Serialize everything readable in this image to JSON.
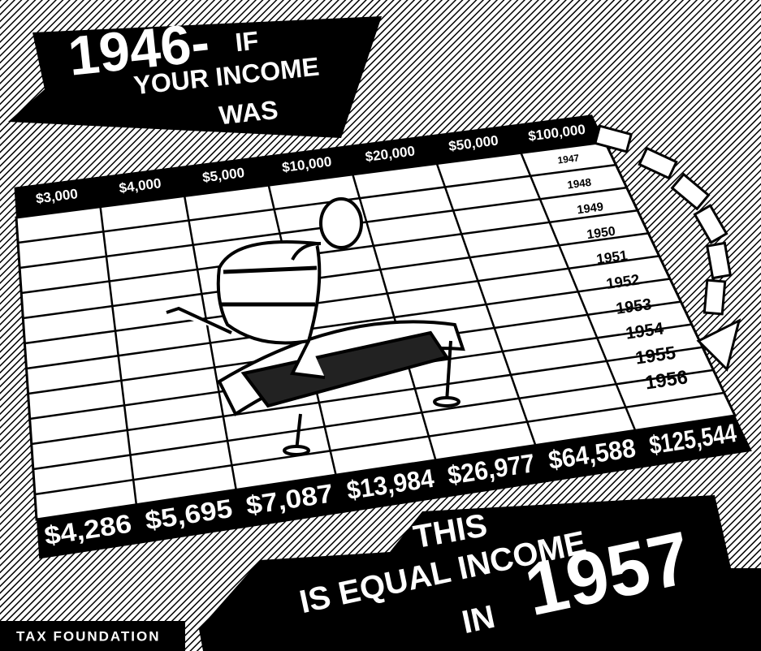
{
  "header": {
    "year": "1946-",
    "lines": [
      "IF",
      "YOUR INCOME",
      "WAS"
    ]
  },
  "table": {
    "incomes_1946": [
      "$3,000",
      "$4,000",
      "$5,000",
      "$10,000",
      "$20,000",
      "$50,000",
      "$100,000"
    ],
    "years": [
      "1947",
      "1948",
      "1949",
      "1950",
      "1951",
      "1952",
      "1953",
      "1954",
      "1955",
      "1956"
    ],
    "equal_incomes_1957": [
      "$4,286",
      "$5,695",
      "$7,087",
      "$13,984",
      "$26,977",
      "$64,588",
      "$125,544"
    ]
  },
  "footer": {
    "lines": [
      "THIS",
      "IS EQUAL INCOME",
      "IN"
    ],
    "year": "1957",
    "credit": "TAX FOUNDATION"
  }
}
